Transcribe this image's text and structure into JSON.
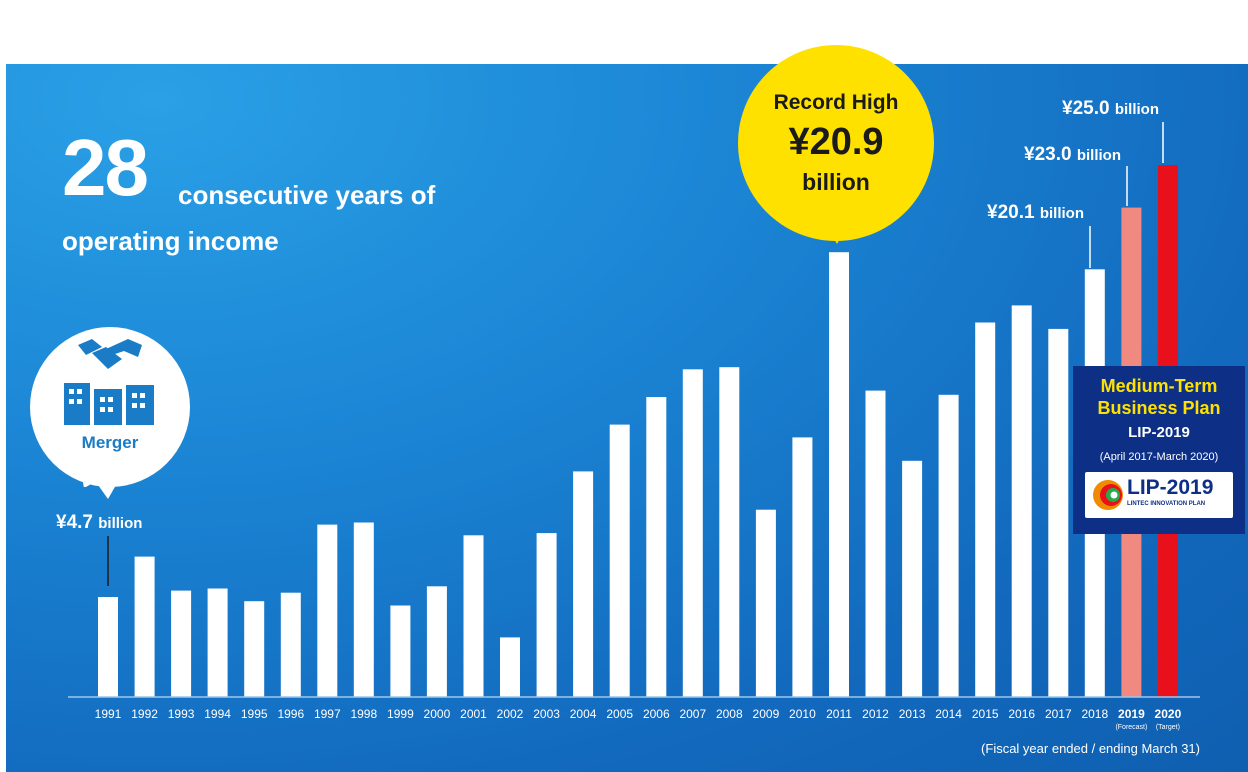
{
  "headline": {
    "number": "28",
    "text_line1": "consecutive years of",
    "text_line2": "operating income"
  },
  "merger": {
    "label": "Merger",
    "value_label": "¥4.7",
    "value_unit": "billion"
  },
  "record": {
    "line1": "Record High",
    "line2": "¥20.9",
    "line3": "billion"
  },
  "callouts": {
    "c2018": {
      "value": "¥20.1",
      "unit": "billion"
    },
    "c2019": {
      "value": "¥23.0",
      "unit": "billion"
    },
    "c2020": {
      "value": "¥25.0",
      "unit": "billion"
    }
  },
  "plan": {
    "line1": "Medium-Term",
    "line2": "Business Plan",
    "line3": "LIP-2019",
    "line4": "(April 2017-March 2020)",
    "logo_text": "LIP-2019",
    "logo_sub": "LINTEC INNOVATION PLAN"
  },
  "footnote": "(Fiscal year ended / ending March 31)",
  "colors": {
    "panel": "#1a80d0",
    "bar": "#ffffff",
    "forecast": "#f08a80",
    "target": "#e8101a",
    "record_bubble": "#ffe100",
    "plan_box": "#0d2f86"
  },
  "chart_data": {
    "type": "bar",
    "categories": [
      "1991",
      "1992",
      "1993",
      "1994",
      "1995",
      "1996",
      "1997",
      "1998",
      "1999",
      "2000",
      "2001",
      "2002",
      "2003",
      "2004",
      "2005",
      "2006",
      "2007",
      "2008",
      "2009",
      "2010",
      "2011",
      "2012",
      "2013",
      "2014",
      "2015",
      "2016",
      "2017",
      "2018",
      "2019",
      "2020"
    ],
    "values": [
      4.7,
      6.6,
      5.0,
      5.1,
      4.5,
      4.9,
      8.1,
      8.2,
      4.3,
      5.2,
      7.6,
      2.8,
      7.7,
      10.6,
      12.8,
      14.1,
      15.4,
      15.5,
      8.8,
      12.2,
      20.9,
      14.4,
      11.1,
      14.2,
      17.6,
      18.4,
      17.3,
      20.1,
      23.0,
      25.0
    ],
    "bar_styles": [
      "actual",
      "actual",
      "actual",
      "actual",
      "actual",
      "actual",
      "actual",
      "actual",
      "actual",
      "actual",
      "actual",
      "actual",
      "actual",
      "actual",
      "actual",
      "actual",
      "actual",
      "actual",
      "actual",
      "actual",
      "actual",
      "actual",
      "actual",
      "actual",
      "actual",
      "actual",
      "actual",
      "actual",
      "forecast",
      "target"
    ],
    "sublabels": {
      "2019": "(Forecast)",
      "2020": "(Target)"
    },
    "unit": "¥ billion",
    "ylim": [
      0,
      25.0
    ],
    "grid": false,
    "legend": "none"
  }
}
